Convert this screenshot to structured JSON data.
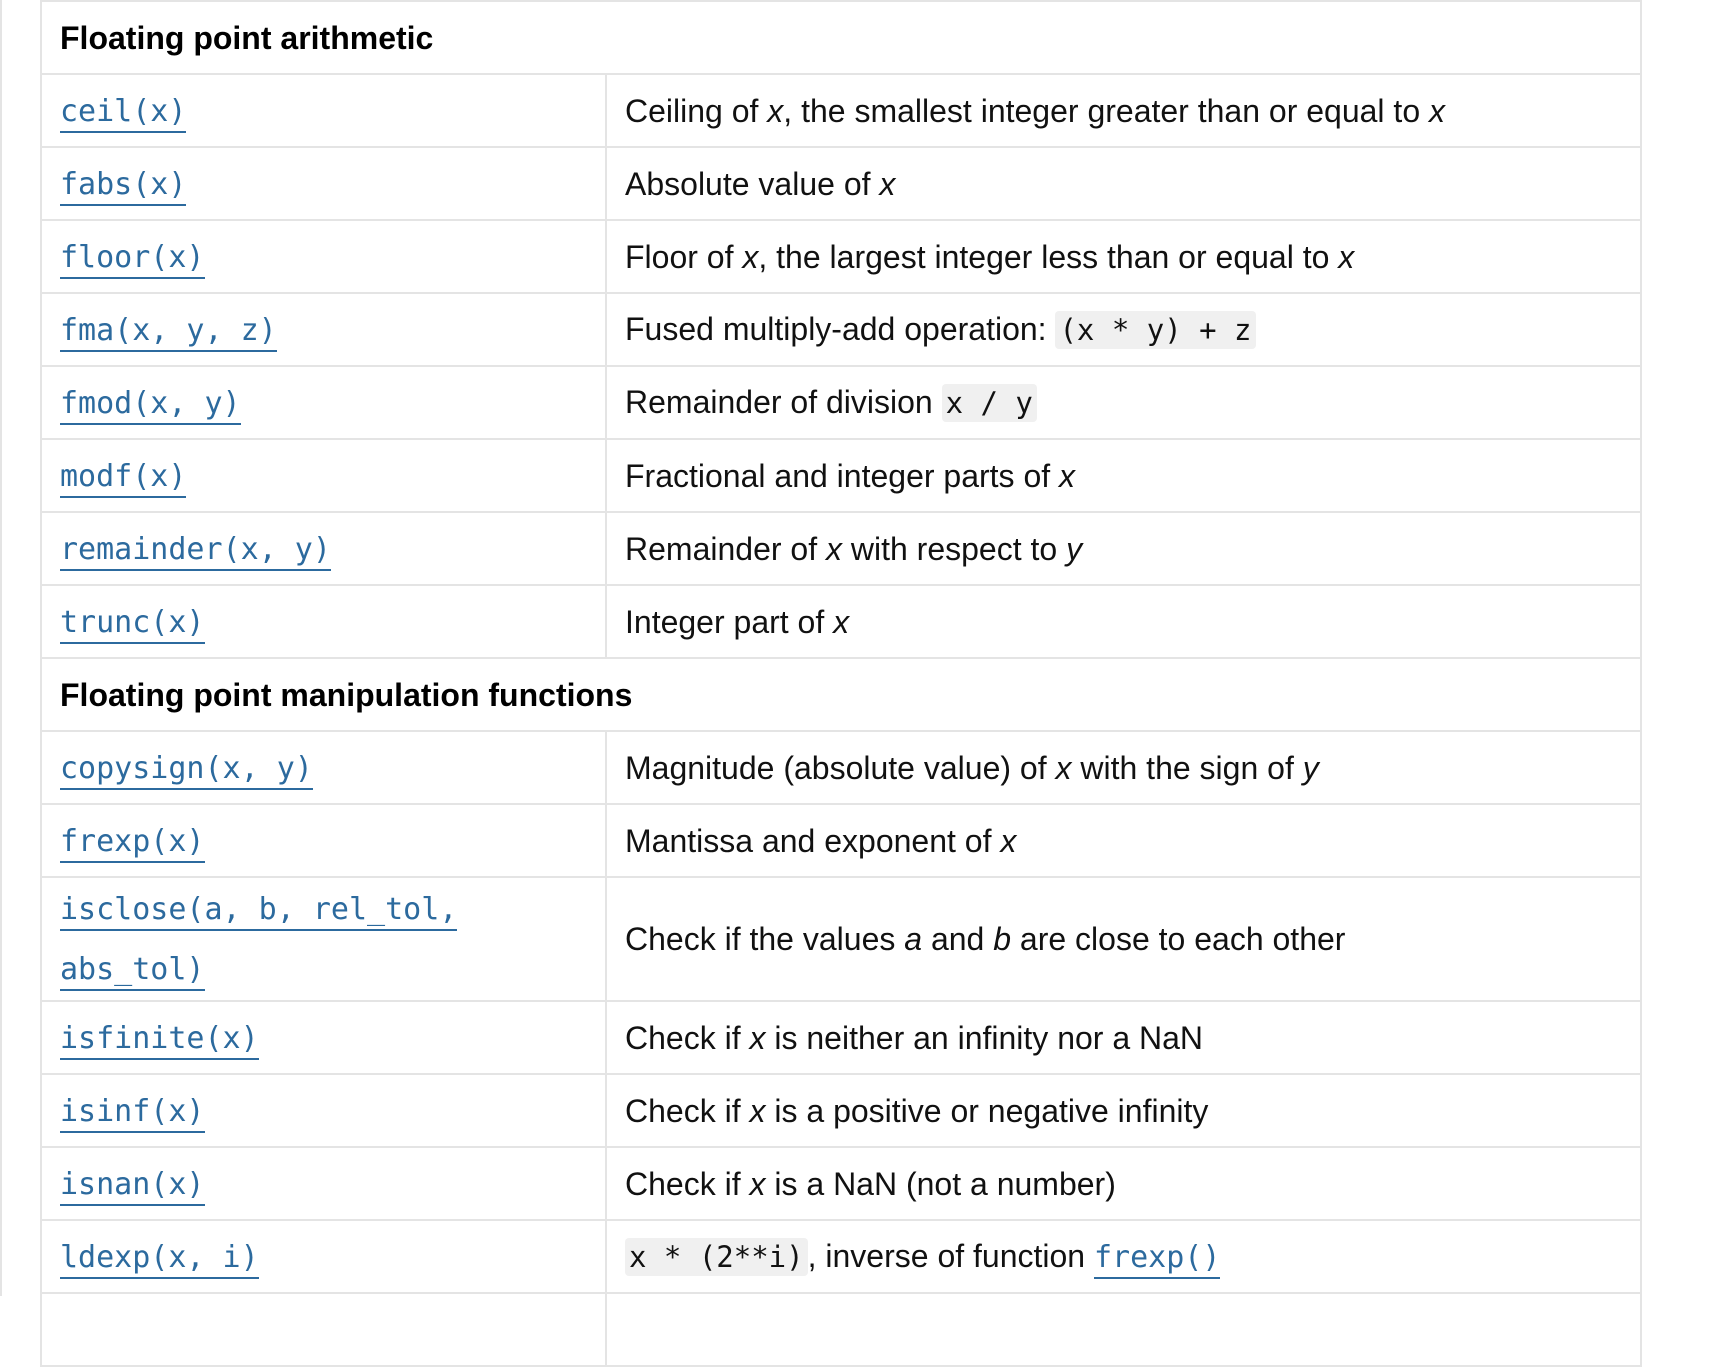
{
  "sections": [
    {
      "title": "Floating point arithmetic",
      "rows": [
        {
          "fn": "ceil(x)",
          "desc": {
            "t1": "Ceiling of ",
            "v1": "x",
            "t2": ", the smallest integer greater than or equal to ",
            "v2": "x"
          }
        },
        {
          "fn": "fabs(x)",
          "desc": {
            "t1": "Absolute value of ",
            "v1": "x"
          }
        },
        {
          "fn": "floor(x)",
          "desc": {
            "t1": "Floor of ",
            "v1": "x",
            "t2": ", the largest integer less than or equal to ",
            "v2": "x"
          }
        },
        {
          "fn": "fma(x, y, z)",
          "desc": {
            "t1": "Fused multiply-add operation: ",
            "code": "(x * y) + z"
          }
        },
        {
          "fn": "fmod(x, y)",
          "desc": {
            "t1": "Remainder of division ",
            "code": "x / y"
          }
        },
        {
          "fn": "modf(x)",
          "desc": {
            "t1": "Fractional and integer parts of ",
            "v1": "x"
          }
        },
        {
          "fn": "remainder(x, y)",
          "desc": {
            "t1": "Remainder of ",
            "v1": "x",
            "t2": " with respect to ",
            "v2": "y"
          }
        },
        {
          "fn": "trunc(x)",
          "desc": {
            "t1": "Integer part of ",
            "v1": "x"
          }
        }
      ]
    },
    {
      "title": "Floating point manipulation functions",
      "rows": [
        {
          "fn": "copysign(x, y)",
          "desc": {
            "t1": "Magnitude (absolute value) of ",
            "v1": "x",
            "t2": " with the sign of ",
            "v2": "y"
          }
        },
        {
          "fn": "frexp(x)",
          "desc": {
            "t1": "Mantissa and exponent of ",
            "v1": "x"
          }
        },
        {
          "fn": "isclose(a, b, rel_tol, abs_tol)",
          "desc": {
            "t1": "Check if the values ",
            "v1": "a",
            "t2": " and ",
            "v2": "b",
            "t3": " are close to each other"
          }
        },
        {
          "fn": "isfinite(x)",
          "desc": {
            "t1": "Check if ",
            "v1": "x",
            "t2": " is neither an infinity nor a NaN"
          }
        },
        {
          "fn": "isinf(x)",
          "desc": {
            "t1": "Check if ",
            "v1": "x",
            "t2": " is a positive or negative infinity"
          }
        },
        {
          "fn": "isnan(x)",
          "desc": {
            "t1": "Check if ",
            "v1": "x",
            "t2": " is a NaN (not a number)"
          }
        },
        {
          "fn": "ldexp(x, i)",
          "desc": {
            "code": "x * (2**i)",
            "t1": ", inverse of function ",
            "link": "frexp()"
          }
        }
      ]
    }
  ],
  "colors": {
    "link": "#2c6a9e",
    "border": "#e4e4e4",
    "code_bg": "#f0f0f0"
  }
}
